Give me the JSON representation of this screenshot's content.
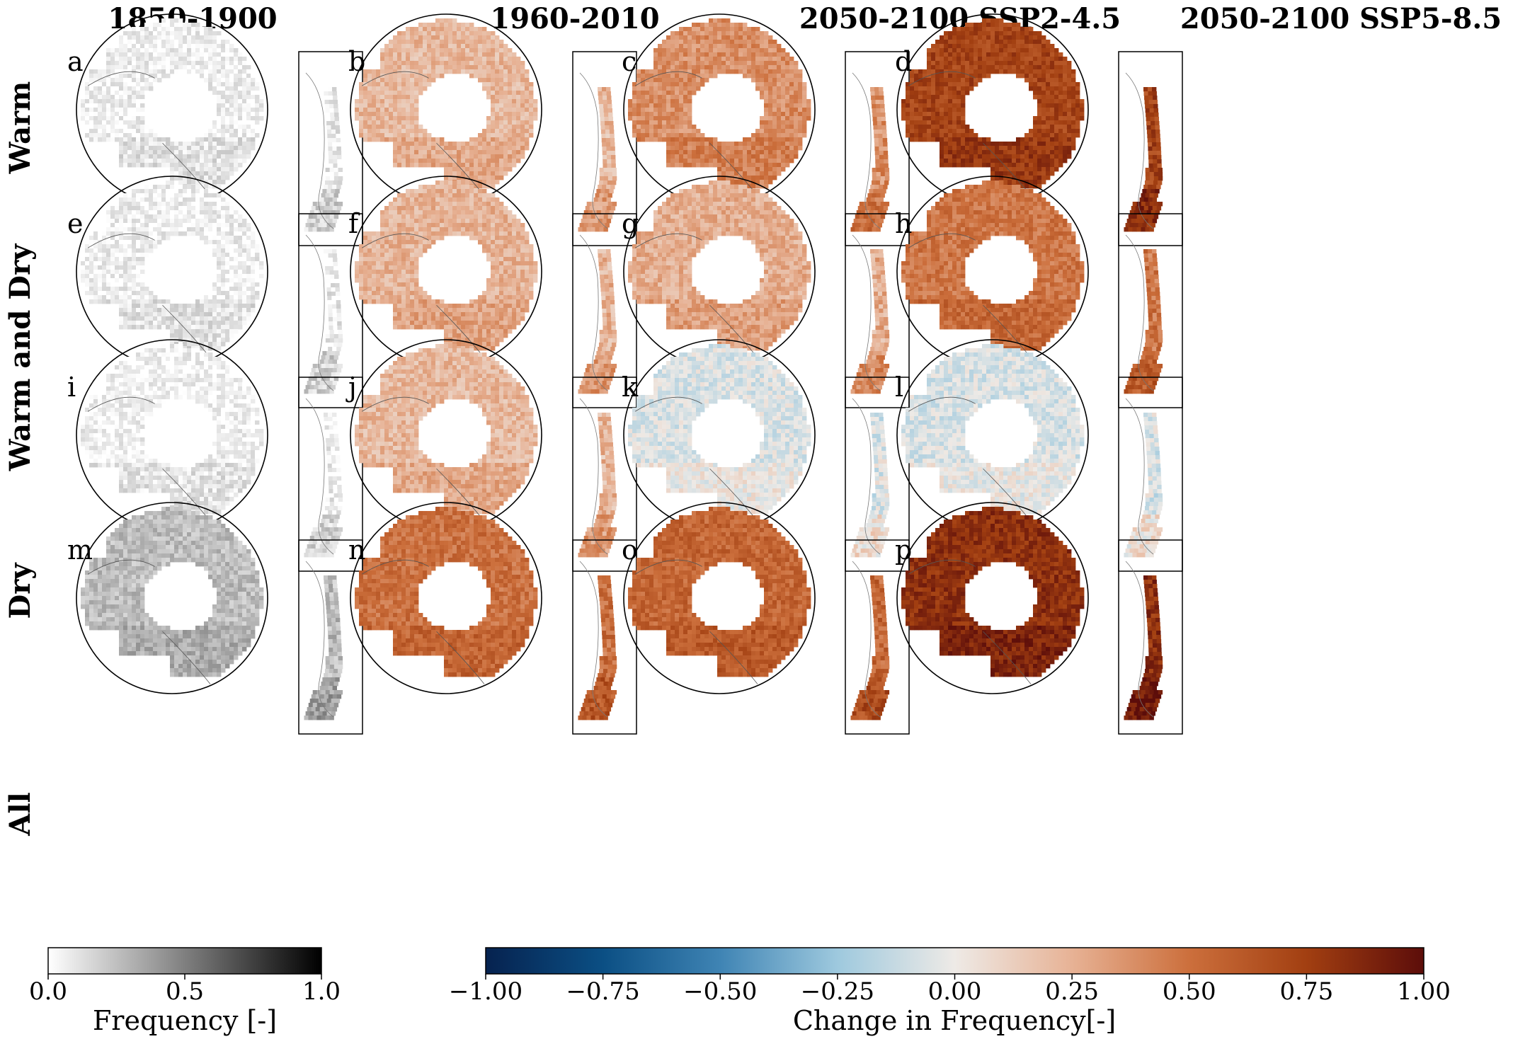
{
  "columns": [
    {
      "title": "1850-1900",
      "mode": "grey"
    },
    {
      "title": "1960-2010",
      "mode": "change"
    },
    {
      "title": "2050-2100 SSP2-4.5",
      "mode": "change"
    },
    {
      "title": "2050-2100 SSP5-8.5",
      "mode": "change"
    }
  ],
  "rows": [
    {
      "label": "Warm"
    },
    {
      "label": "Warm and Dry"
    },
    {
      "label": "Dry"
    },
    {
      "label": "All"
    }
  ],
  "panels": [
    {
      "letter": "a",
      "level": 0.06
    },
    {
      "letter": "b",
      "level": 0.22
    },
    {
      "letter": "c",
      "level": 0.38
    },
    {
      "letter": "d",
      "level": 0.72
    },
    {
      "letter": "e",
      "level": 0.06
    },
    {
      "letter": "f",
      "level": 0.24
    },
    {
      "letter": "g",
      "level": 0.26
    },
    {
      "letter": "h",
      "level": 0.48
    },
    {
      "letter": "i",
      "level": 0.05
    },
    {
      "letter": "j",
      "level": 0.22
    },
    {
      "letter": "k",
      "level": -0.06
    },
    {
      "letter": "l",
      "level": -0.07
    },
    {
      "letter": "m",
      "level": 0.26
    },
    {
      "letter": "n",
      "level": 0.5
    },
    {
      "letter": "o",
      "level": 0.55
    },
    {
      "letter": "p",
      "level": 0.82
    }
  ],
  "colorbars": [
    {
      "label": "Frequency [-]",
      "ticks": [
        "0.0",
        "0.5",
        "1.0"
      ],
      "tick_values": [
        0,
        0.5,
        1
      ],
      "range": [
        0,
        1
      ],
      "colors": [
        "#ffffff",
        "#000000"
      ]
    },
    {
      "label": "Change in Frequency[-]",
      "ticks": [
        "−1.00",
        "−0.75",
        "−0.50",
        "−0.25",
        "0.00",
        "0.25",
        "0.50",
        "0.75",
        "1.00"
      ],
      "tick_values": [
        -1,
        -0.75,
        -0.5,
        -0.25,
        0,
        0.25,
        0.5,
        0.75,
        1
      ],
      "range": [
        -1,
        1
      ],
      "colors": [
        "#06224f",
        "#0b4f84",
        "#3f84b4",
        "#9ec9de",
        "#eeeae6",
        "#e7b295",
        "#cc6f3c",
        "#a23f11",
        "#5c0d0a"
      ]
    }
  ]
}
